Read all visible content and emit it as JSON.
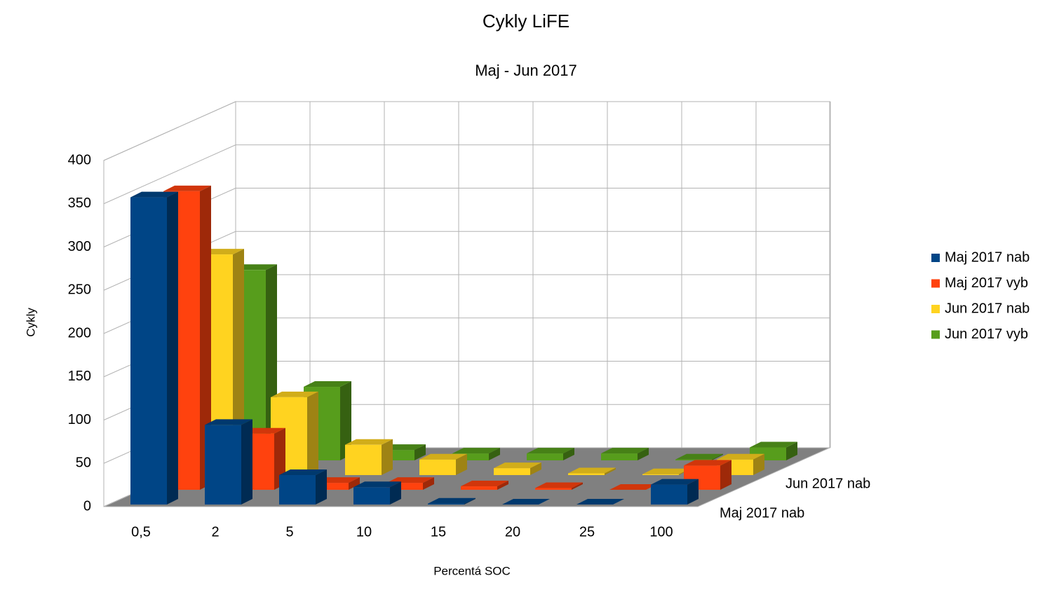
{
  "chart_data": {
    "type": "bar3d",
    "title": "Cykly LiFE",
    "subtitle": "Maj - Jun 2017",
    "x_label": "Percentá SOC",
    "y_label": "Cykly",
    "categories": [
      "0,5",
      "2",
      "5",
      "10",
      "15",
      "20",
      "25",
      "100"
    ],
    "depth_labels": [
      "Maj 2017 nab",
      null,
      "Jun 2017 nab",
      null
    ],
    "series": [
      {
        "name": "Maj 2017 nab",
        "color": "#004586",
        "values": [
          355,
          92,
          34,
          20,
          1,
          0,
          0,
          23
        ]
      },
      {
        "name": "Maj 2017 vyb",
        "color": "#ff420e",
        "values": [
          345,
          65,
          8,
          8,
          4,
          2,
          0,
          28
        ]
      },
      {
        "name": "Jun 2017 nab",
        "color": "#ffd320",
        "values": [
          255,
          90,
          35,
          18,
          8,
          2,
          1,
          18
        ]
      },
      {
        "name": "Jun 2017 vyb",
        "color": "#579d1c",
        "values": [
          220,
          85,
          12,
          8,
          8,
          8,
          1,
          15
        ]
      }
    ],
    "ylim": [
      0,
      400
    ],
    "yticks": [
      0,
      50,
      100,
      150,
      200,
      250,
      300,
      350,
      400
    ],
    "grid": true,
    "legend": "right"
  }
}
